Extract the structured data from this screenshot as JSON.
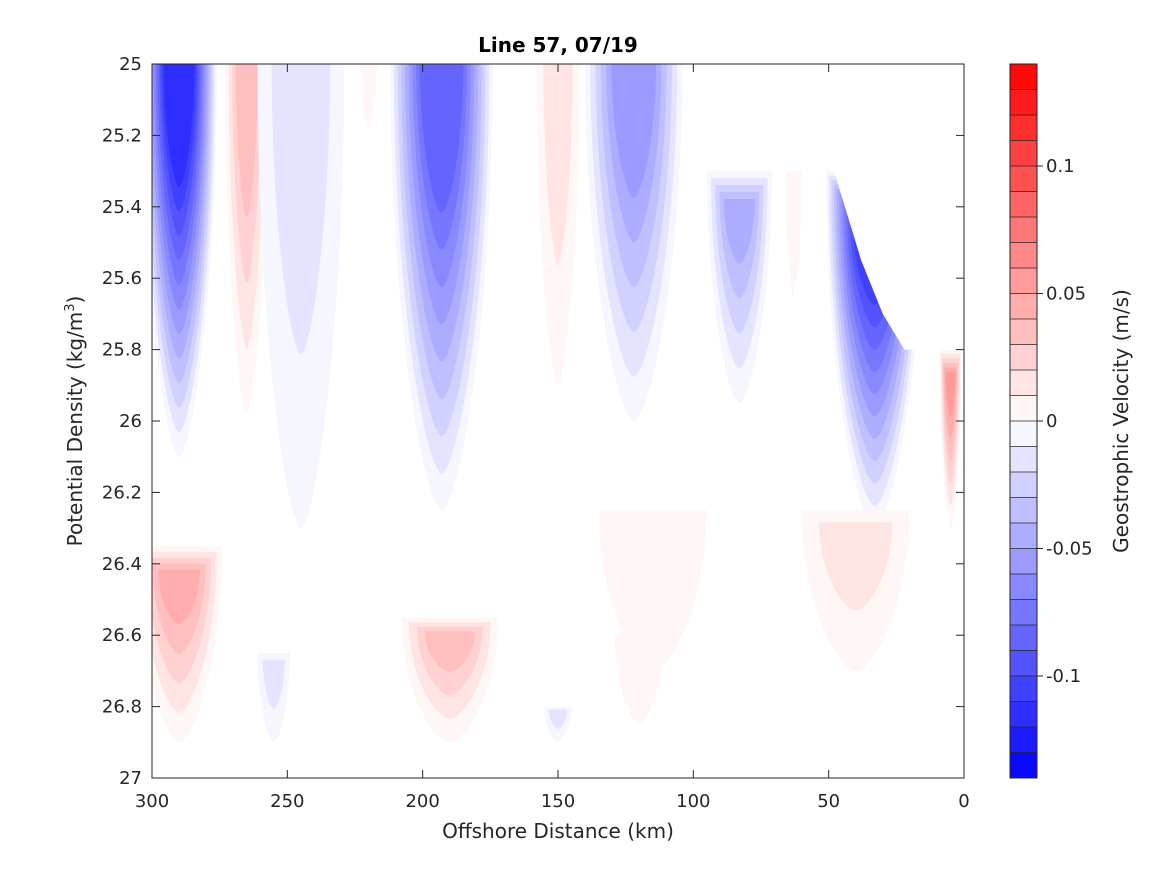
{
  "chart_data": {
    "type": "heatmap",
    "title": "Line 57, 07/19",
    "xlabel": "Offshore Distance (km)",
    "ylabel_main": "Potential Density (kg/m",
    "ylabel_sup": "3",
    "ylabel_end": ")",
    "colorbar_label": "Geostrophic Velocity (m/s)",
    "x_axis_reversed": true,
    "xlim": [
      0,
      300
    ],
    "ylim": [
      25,
      27
    ],
    "x_ticks": [
      300,
      250,
      200,
      150,
      100,
      50,
      0
    ],
    "x_tick_labels": [
      "300",
      "250",
      "200",
      "150",
      "100",
      "50",
      "0"
    ],
    "y_ticks": [
      25,
      25.2,
      25.4,
      25.6,
      25.8,
      26,
      26.2,
      26.4,
      26.6,
      26.8,
      27
    ],
    "y_tick_labels": [
      "25",
      "25.2",
      "25.4",
      "25.6",
      "25.8",
      "26",
      "26.2",
      "26.4",
      "26.6",
      "26.8",
      "27"
    ],
    "colorbar_range": [
      -0.14,
      0.14
    ],
    "colorbar_levels": 28,
    "colorbar_ticks": [
      0.1,
      0.05,
      0,
      -0.05,
      -0.1
    ],
    "colorbar_tick_labels": [
      "0.1",
      "0.05",
      "0",
      "-0.05",
      "-0.1"
    ],
    "colormap": {
      "negative": "#0000ff",
      "zero": "#ffffff",
      "positive": "#ff0000"
    },
    "features": [
      {
        "name": "cell-290",
        "x": 290,
        "y_top": 25.0,
        "y_bottom": 26.1,
        "half_width": 14,
        "peak": -0.12
      },
      {
        "name": "cell-265",
        "x": 265,
        "y_top": 25.0,
        "y_bottom": 25.98,
        "half_width": 8,
        "peak": 0.04
      },
      {
        "name": "cell-245",
        "x": 245,
        "y_top": 25.0,
        "y_bottom": 26.3,
        "half_width": 16,
        "peak": -0.02
      },
      {
        "name": "cell-220",
        "x": 220,
        "y_top": 25.0,
        "y_bottom": 25.18,
        "half_width": 3,
        "peak": 0.01
      },
      {
        "name": "cell-193",
        "x": 193,
        "y_top": 25.0,
        "y_bottom": 26.25,
        "half_width": 19,
        "peak": -0.09
      },
      {
        "name": "cell-150",
        "x": 150,
        "y_top": 25.0,
        "y_bottom": 25.9,
        "half_width": 8,
        "peak": 0.02
      },
      {
        "name": "cell-122",
        "x": 122,
        "y_top": 25.0,
        "y_bottom": 26.0,
        "half_width": 18,
        "peak": -0.06
      },
      {
        "name": "cell-83",
        "x": 83,
        "y_top": 25.3,
        "y_bottom": 25.95,
        "half_width": 12,
        "peak": -0.05
      },
      {
        "name": "cell-63",
        "x": 63,
        "y_top": 25.3,
        "y_bottom": 25.65,
        "half_width": 3,
        "peak": 0.01
      },
      {
        "name": "cell-33",
        "x": 33,
        "y_top": 25.3,
        "y_bottom": 26.3,
        "half_width": 18,
        "peak": -0.12
      },
      {
        "name": "cell-5",
        "x": 5,
        "y_top": 25.8,
        "y_bottom": 26.3,
        "half_width": 4,
        "peak": 0.06
      },
      {
        "name": "cell-290-deep",
        "x": 290,
        "y_top": 26.35,
        "y_bottom": 26.9,
        "half_width": 16,
        "peak": 0.05
      },
      {
        "name": "cell-190-deep",
        "x": 190,
        "y_top": 26.55,
        "y_bottom": 26.9,
        "half_width": 18,
        "peak": 0.04
      },
      {
        "name": "cell-115-deep",
        "x": 115,
        "y_top": 26.25,
        "y_bottom": 26.7,
        "half_width": 20,
        "peak": 0.01
      },
      {
        "name": "cell-40-deep",
        "x": 40,
        "y_top": 26.25,
        "y_bottom": 26.7,
        "half_width": 20,
        "peak": 0.02
      },
      {
        "name": "cell-120-deep-b",
        "x": 120,
        "y_top": 26.6,
        "y_bottom": 26.85,
        "half_width": 9,
        "peak": 0.01
      },
      {
        "name": "cell-255-deep",
        "x": 255,
        "y_top": 26.65,
        "y_bottom": 26.9,
        "half_width": 6,
        "peak": -0.02
      },
      {
        "name": "cell-150-deep",
        "x": 150,
        "y_top": 26.8,
        "y_bottom": 26.9,
        "half_width": 5,
        "peak": -0.02
      }
    ],
    "blank_regions": [
      {
        "name": "no-data-top-right",
        "polygon": [
          [
            96,
            25.0
          ],
          [
            0,
            25.0
          ],
          [
            0,
            25.8
          ],
          [
            12,
            25.8
          ],
          [
            22,
            25.8
          ],
          [
            30,
            25.7
          ],
          [
            38,
            25.55
          ],
          [
            44,
            25.4
          ],
          [
            48,
            25.3
          ],
          [
            80,
            25.3
          ]
        ]
      },
      {
        "name": "no-data-bottom",
        "polygon": [
          [
            300,
            26.9
          ],
          [
            0,
            26.9
          ],
          [
            0,
            27.0
          ],
          [
            300,
            27.0
          ]
        ]
      },
      {
        "name": "no-data-nearshore",
        "polygon": [
          [
            0,
            26.3
          ],
          [
            5,
            26.3
          ],
          [
            5,
            26.9
          ],
          [
            0,
            26.9
          ]
        ]
      }
    ]
  }
}
